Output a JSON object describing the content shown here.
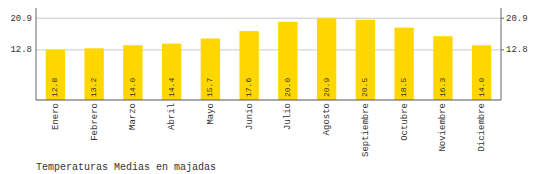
{
  "chart_data": {
    "type": "bar",
    "title": "Temperaturas Medias en majadas",
    "categories": [
      "Enero",
      "Febrero",
      "Marzo",
      "Abril",
      "Mayo",
      "Junio",
      "Julio",
      "Agosto",
      "Septiembre",
      "Octubre",
      "Noviembre",
      "Diciembre"
    ],
    "values": [
      12.8,
      13.2,
      14.0,
      14.4,
      15.7,
      17.6,
      20.0,
      20.9,
      20.5,
      18.5,
      16.3,
      14.0
    ],
    "value_labels": [
      "12.8",
      "13.2",
      "14.0",
      "14.4",
      "15.7",
      "17.6",
      "20.0",
      "20.9",
      "20.5",
      "18.5",
      "16.3",
      "14.0"
    ],
    "color": "#FFD700",
    "ylim": [
      0,
      23.5
    ],
    "yticks": [
      12.8,
      20.9
    ],
    "y2lim": [
      0,
      23.5
    ],
    "y2ticks": [
      12.8,
      20.9
    ],
    "grid": true,
    "data_labels": true
  }
}
